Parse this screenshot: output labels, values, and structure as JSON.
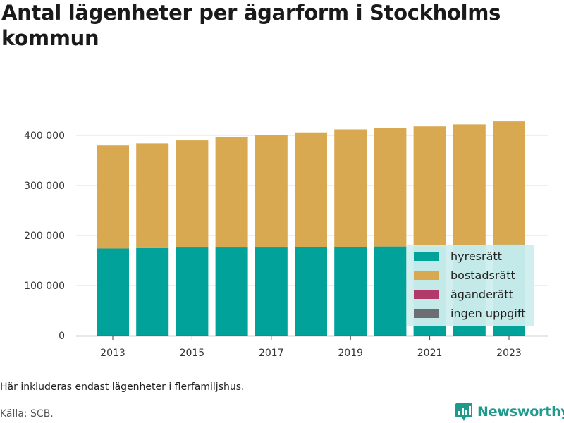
{
  "title": "Antal lägenheter per ägarform i Stockholms kommun",
  "note": "Här inkluderas endast lägenheter i flerfamiljshus.",
  "source": "Källa: SCB.",
  "brand": "Newsworthy",
  "colors": {
    "hyresratt": "#00a29a",
    "bostadsratt": "#d9a952",
    "aganderatt": "#b23a6b",
    "ingen_uppgift": "#6b6f73",
    "legend_bg": "#cdeeed",
    "grid": "#dddddd",
    "brand": "#1d9a8c"
  },
  "chart_data": {
    "type": "bar",
    "stacked": true,
    "categories": [
      2013,
      2014,
      2015,
      2016,
      2017,
      2018,
      2019,
      2020,
      2021,
      2022,
      2023
    ],
    "x_tick_labels": [
      "2013",
      "2015",
      "2017",
      "2019",
      "2021",
      "2023"
    ],
    "y_tick_labels": [
      "0",
      "100 000",
      "200 000",
      "300 000",
      "400 000"
    ],
    "ylim": [
      0,
      430000
    ],
    "grid": true,
    "legend_position": "bottom-right inside",
    "series": [
      {
        "name": "hyresrätt",
        "color_key": "hyresratt",
        "values": [
          174000,
          175000,
          176000,
          176000,
          176000,
          177000,
          177000,
          178000,
          178000,
          180000,
          182000
        ]
      },
      {
        "name": "bostadsrätt",
        "color_key": "bostadsratt",
        "values": [
          206000,
          209000,
          214000,
          221000,
          225000,
          229000,
          235000,
          237000,
          240000,
          242000,
          246000
        ]
      },
      {
        "name": "äganderätt",
        "color_key": "aganderatt",
        "values": [
          0,
          0,
          0,
          0,
          0,
          0,
          0,
          0,
          0,
          0,
          0
        ]
      },
      {
        "name": "ingen uppgift",
        "color_key": "ingen_uppgift",
        "values": [
          0,
          0,
          0,
          0,
          0,
          0,
          0,
          0,
          0,
          0,
          0
        ]
      }
    ]
  }
}
